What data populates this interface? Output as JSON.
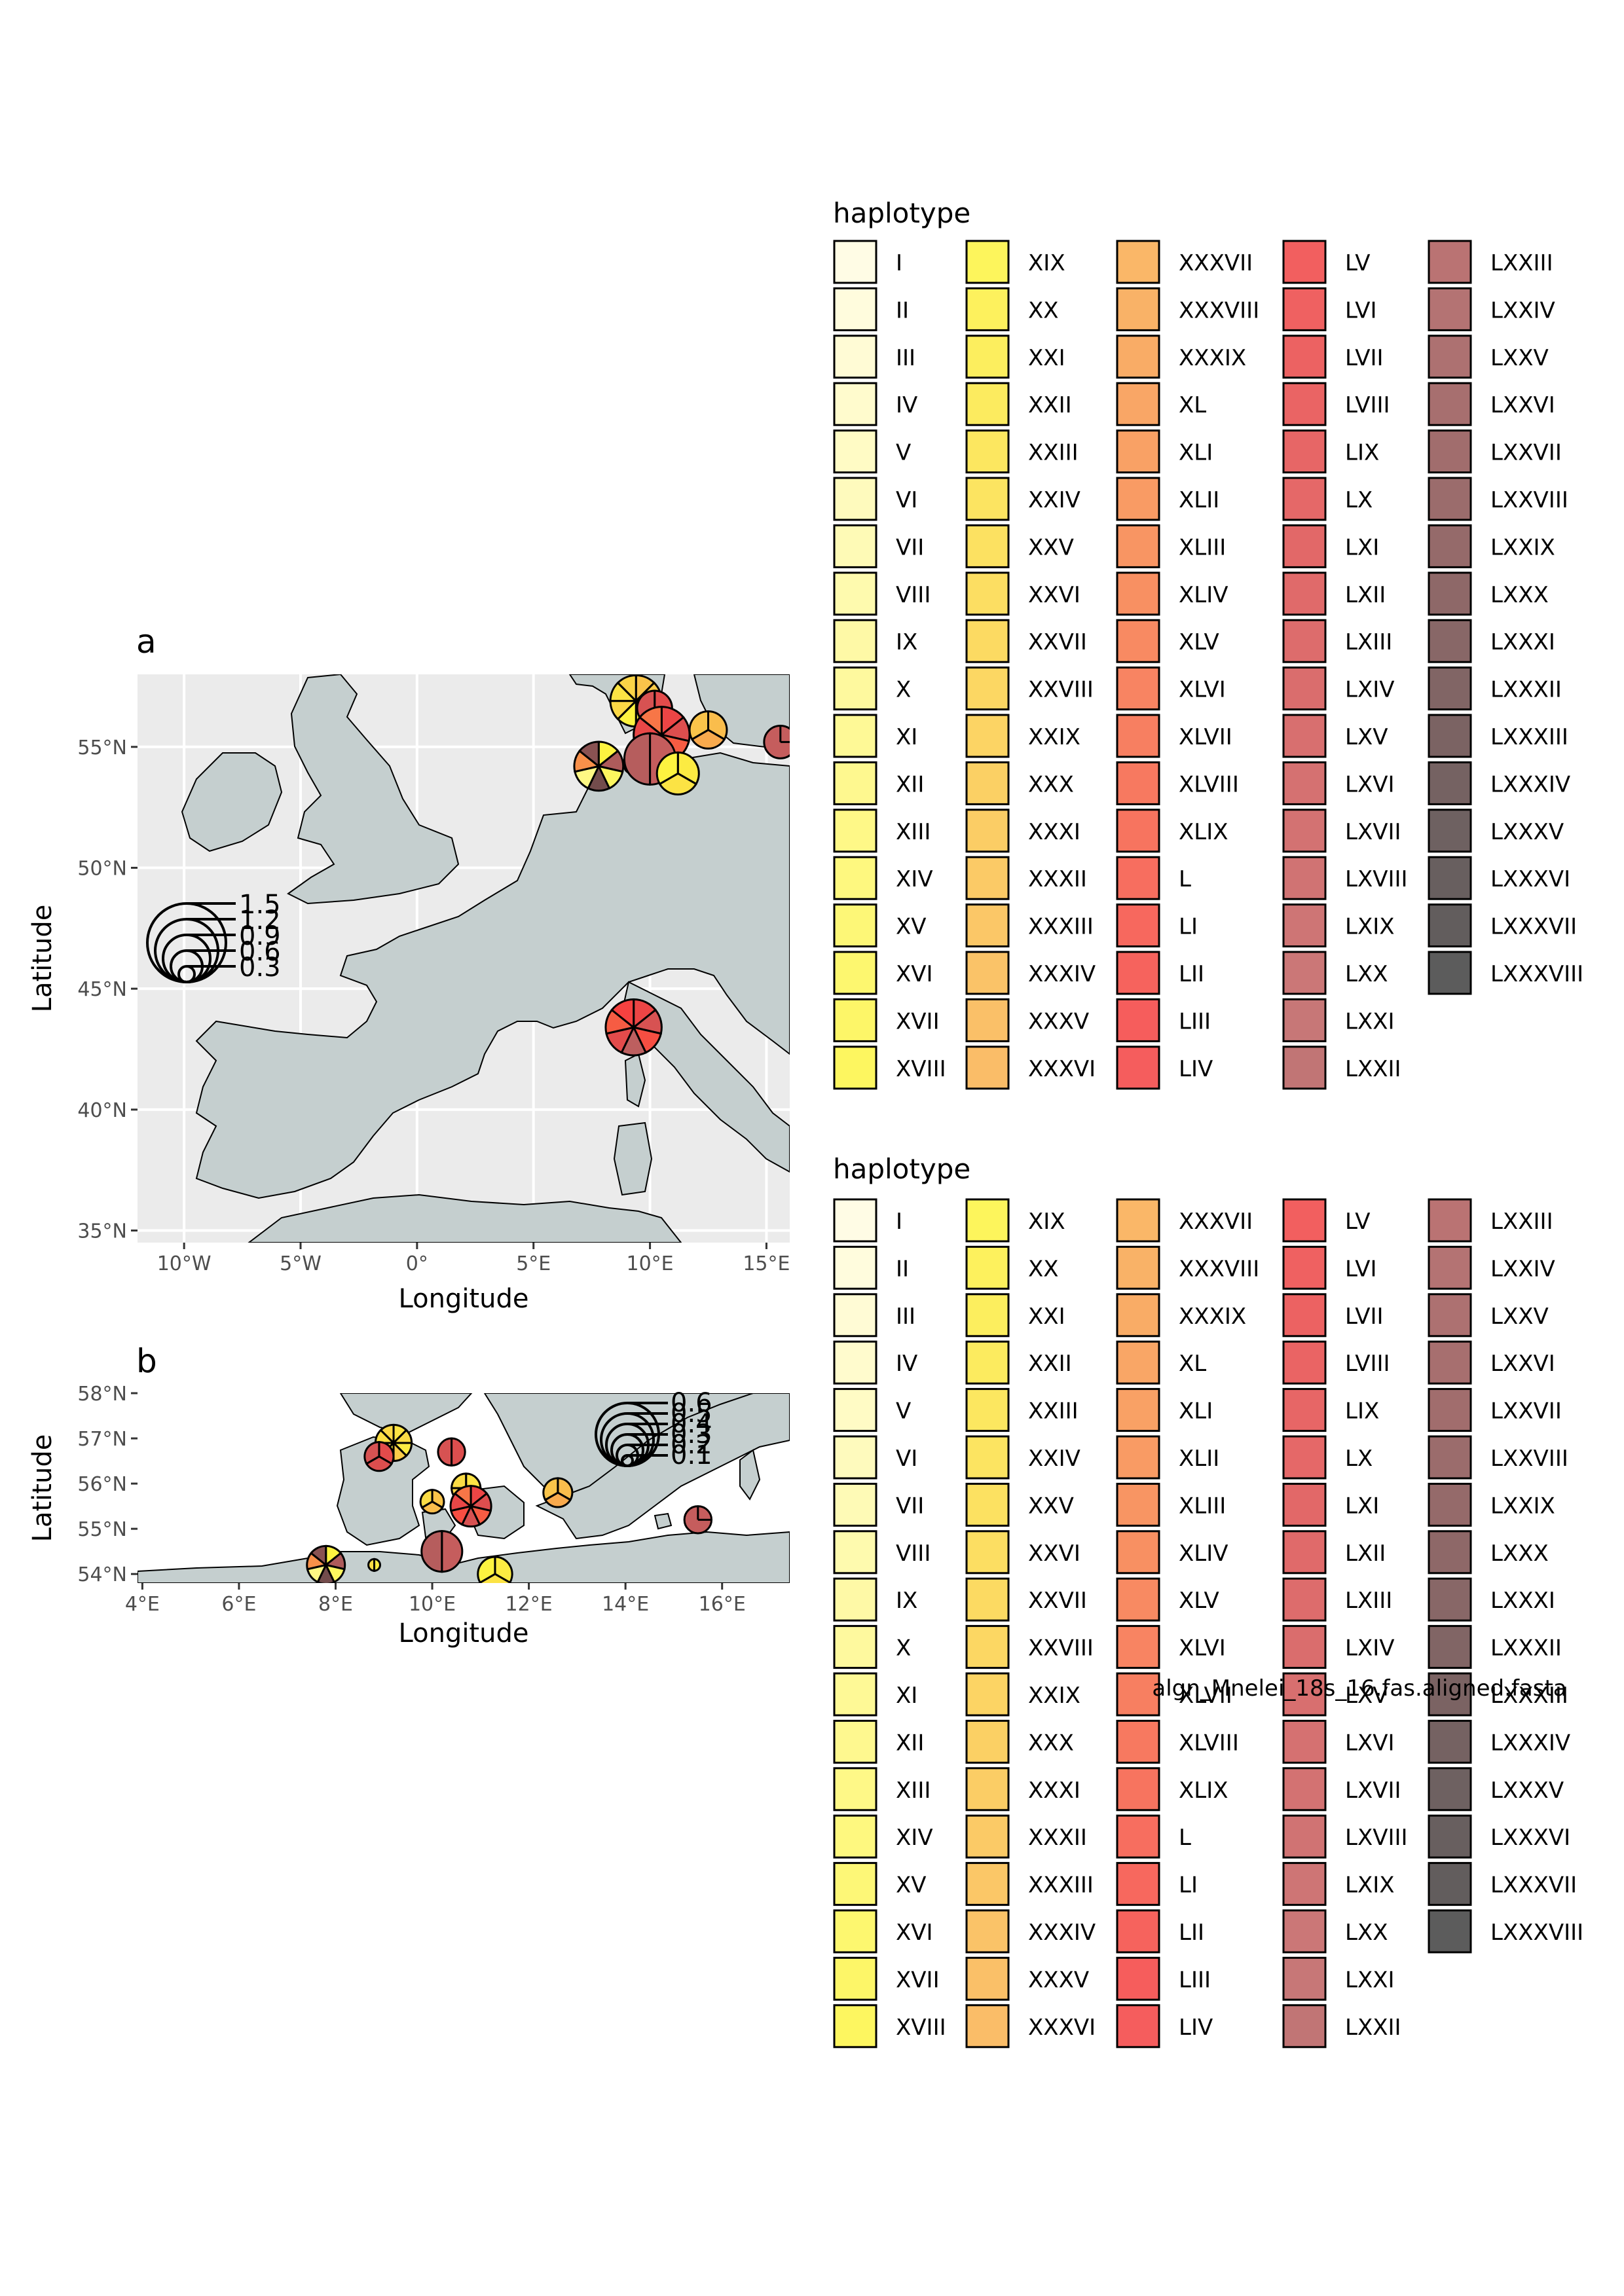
{
  "panel_a": {
    "label": "a",
    "xlabel": "Longitude",
    "ylabel": "Latitude",
    "x_ticks": [
      "10°W",
      "5°W",
      "0°",
      "5°E",
      "10°E",
      "15°E"
    ],
    "x_tick_values": [
      -10,
      -5,
      0,
      5,
      10,
      15
    ],
    "y_ticks": [
      "35°N",
      "40°N",
      "45°N",
      "50°N",
      "55°N"
    ],
    "y_tick_values": [
      35,
      40,
      45,
      50,
      55
    ],
    "xlim": [
      -12,
      16
    ],
    "ylim": [
      34.5,
      58
    ],
    "size_legend": [
      "1.5",
      "1.2",
      "0.9",
      "0.6",
      "0.3"
    ]
  },
  "panel_b": {
    "label": "b",
    "xlabel": "Longitude",
    "ylabel": "Latitude",
    "x_ticks": [
      "4°E",
      "6°E",
      "8°E",
      "10°E",
      "12°E",
      "14°E",
      "16°E"
    ],
    "x_tick_values": [
      4,
      6,
      8,
      10,
      12,
      14,
      16
    ],
    "y_ticks": [
      "54°N",
      "55°N",
      "56°N",
      "57°N",
      "58°N"
    ],
    "y_tick_values": [
      54,
      55,
      56,
      57,
      58
    ],
    "xlim": [
      3.9,
      17.4
    ],
    "ylim": [
      53.8,
      58
    ],
    "size_legend": [
      "0.6",
      "0.5",
      "0.4",
      "0.3",
      "0.2",
      "0.1"
    ]
  },
  "legend_1": {
    "title": "haplotype"
  },
  "legend_2": {
    "title": "haplotype"
  },
  "haplotypes": [
    "I",
    "II",
    "III",
    "IV",
    "V",
    "VI",
    "VII",
    "VIII",
    "IX",
    "X",
    "XI",
    "XII",
    "XIII",
    "XIV",
    "XV",
    "XVI",
    "XVII",
    "XVIII",
    "XIX",
    "XX",
    "XXI",
    "XXII",
    "XXIII",
    "XXIV",
    "XXV",
    "XXVI",
    "XXVII",
    "XXVIII",
    "XXIX",
    "XXX",
    "XXXI",
    "XXXII",
    "XXXIII",
    "XXXIV",
    "XXXV",
    "XXXVI",
    "XXXVII",
    "XXXVIII",
    "XXXIX",
    "XL",
    "XLI",
    "XLII",
    "XLIII",
    "XLIV",
    "XLV",
    "XLVI",
    "XLVII",
    "XLVIII",
    "XLIX",
    "L",
    "LI",
    "LII",
    "LIII",
    "LIV",
    "LV",
    "LVI",
    "LVII",
    "LVIII",
    "LIX",
    "LX",
    "LXI",
    "LXII",
    "LXIII",
    "LXIV",
    "LXV",
    "LXVI",
    "LXVII",
    "LXVIII",
    "LXIX",
    "LXX",
    "LXXI",
    "LXXII",
    "LXXIII",
    "LXXIV",
    "LXXV",
    "LXXVI",
    "LXXVII",
    "LXXVIII",
    "LXXIX",
    "LXXX",
    "LXXXI",
    "LXXXII",
    "LXXXIII",
    "LXXXIV",
    "LXXXV",
    "LXXXVI",
    "LXXXVII",
    "LXXXVIII"
  ],
  "colors": {
    "sea": "#ebebeb",
    "land": "#c5cfcf",
    "grid": "#ffffff",
    "gradient_stops": [
      "#fffbe0",
      "#fdf540",
      "#f9b24e",
      "#f54040",
      "#c06060",
      "#3f3f3f"
    ]
  },
  "caption": "algn_Mnelei_18s_16.fas.aligned.fasta",
  "pies_a": [
    {
      "lon": 9.4,
      "lat": 56.9,
      "r": 1.1,
      "slices": [
        30,
        28,
        24,
        20,
        18,
        25,
        22,
        26
      ]
    },
    {
      "lon": 10.2,
      "lat": 56.6,
      "r": 0.75,
      "slices": [
        58,
        60,
        62
      ]
    },
    {
      "lon": 10.5,
      "lat": 55.5,
      "r": 1.2,
      "slices": [
        55,
        60,
        48,
        62,
        50,
        56,
        44
      ]
    },
    {
      "lon": 12.5,
      "lat": 55.7,
      "r": 0.8,
      "slices": [
        32,
        36,
        30
      ]
    },
    {
      "lon": 7.8,
      "lat": 54.2,
      "r": 1.05,
      "slices": [
        18,
        72,
        14,
        80,
        10,
        40,
        77
      ]
    },
    {
      "lon": 9.2,
      "lat": 54.2,
      "r": 0.3,
      "slices": [
        20,
        24
      ]
    },
    {
      "lon": 10.0,
      "lat": 54.5,
      "r": 1.1,
      "slices": [
        68,
        71
      ]
    },
    {
      "lon": 11.2,
      "lat": 53.9,
      "r": 0.9,
      "slices": [
        20,
        22,
        18
      ]
    },
    {
      "lon": 15.6,
      "lat": 55.2,
      "r": 0.7,
      "slices": [
        68
      ]
    },
    {
      "lon": 9.3,
      "lat": 43.4,
      "r": 1.2,
      "slices": [
        55,
        62,
        50,
        70,
        58,
        48,
        52
      ]
    }
  ],
  "pies_b": [
    {
      "lon": 9.2,
      "lat": 56.9,
      "r": 0.4,
      "slices": [
        22,
        24,
        20,
        28,
        18,
        26,
        23,
        25
      ]
    },
    {
      "lon": 8.9,
      "lat": 56.6,
      "r": 0.32,
      "slices": [
        58,
        60,
        62
      ]
    },
    {
      "lon": 10.4,
      "lat": 56.7,
      "r": 0.3,
      "slices": [
        60,
        62
      ]
    },
    {
      "lon": 10.7,
      "lat": 55.9,
      "r": 0.32,
      "slices": [
        22,
        20,
        26,
        24
      ]
    },
    {
      "lon": 10.0,
      "lat": 55.6,
      "r": 0.26,
      "slices": [
        30,
        32,
        24
      ]
    },
    {
      "lon": 10.8,
      "lat": 55.5,
      "r": 0.45,
      "slices": [
        55,
        60,
        48,
        62,
        50,
        56,
        44
      ]
    },
    {
      "lon": 12.6,
      "lat": 55.8,
      "r": 0.32,
      "slices": [
        32,
        36,
        30
      ]
    },
    {
      "lon": 15.5,
      "lat": 55.2,
      "r": 0.3,
      "slices": [
        68
      ]
    },
    {
      "lon": 7.8,
      "lat": 54.2,
      "r": 0.42,
      "slices": [
        18,
        72,
        14,
        80,
        10,
        40,
        77
      ]
    },
    {
      "lon": 8.8,
      "lat": 54.2,
      "r": 0.13,
      "slices": [
        20,
        24
      ]
    },
    {
      "lon": 10.2,
      "lat": 54.5,
      "r": 0.45,
      "slices": [
        68,
        71
      ]
    },
    {
      "lon": 11.3,
      "lat": 54.0,
      "r": 0.38,
      "slices": [
        20,
        22,
        18
      ]
    }
  ]
}
